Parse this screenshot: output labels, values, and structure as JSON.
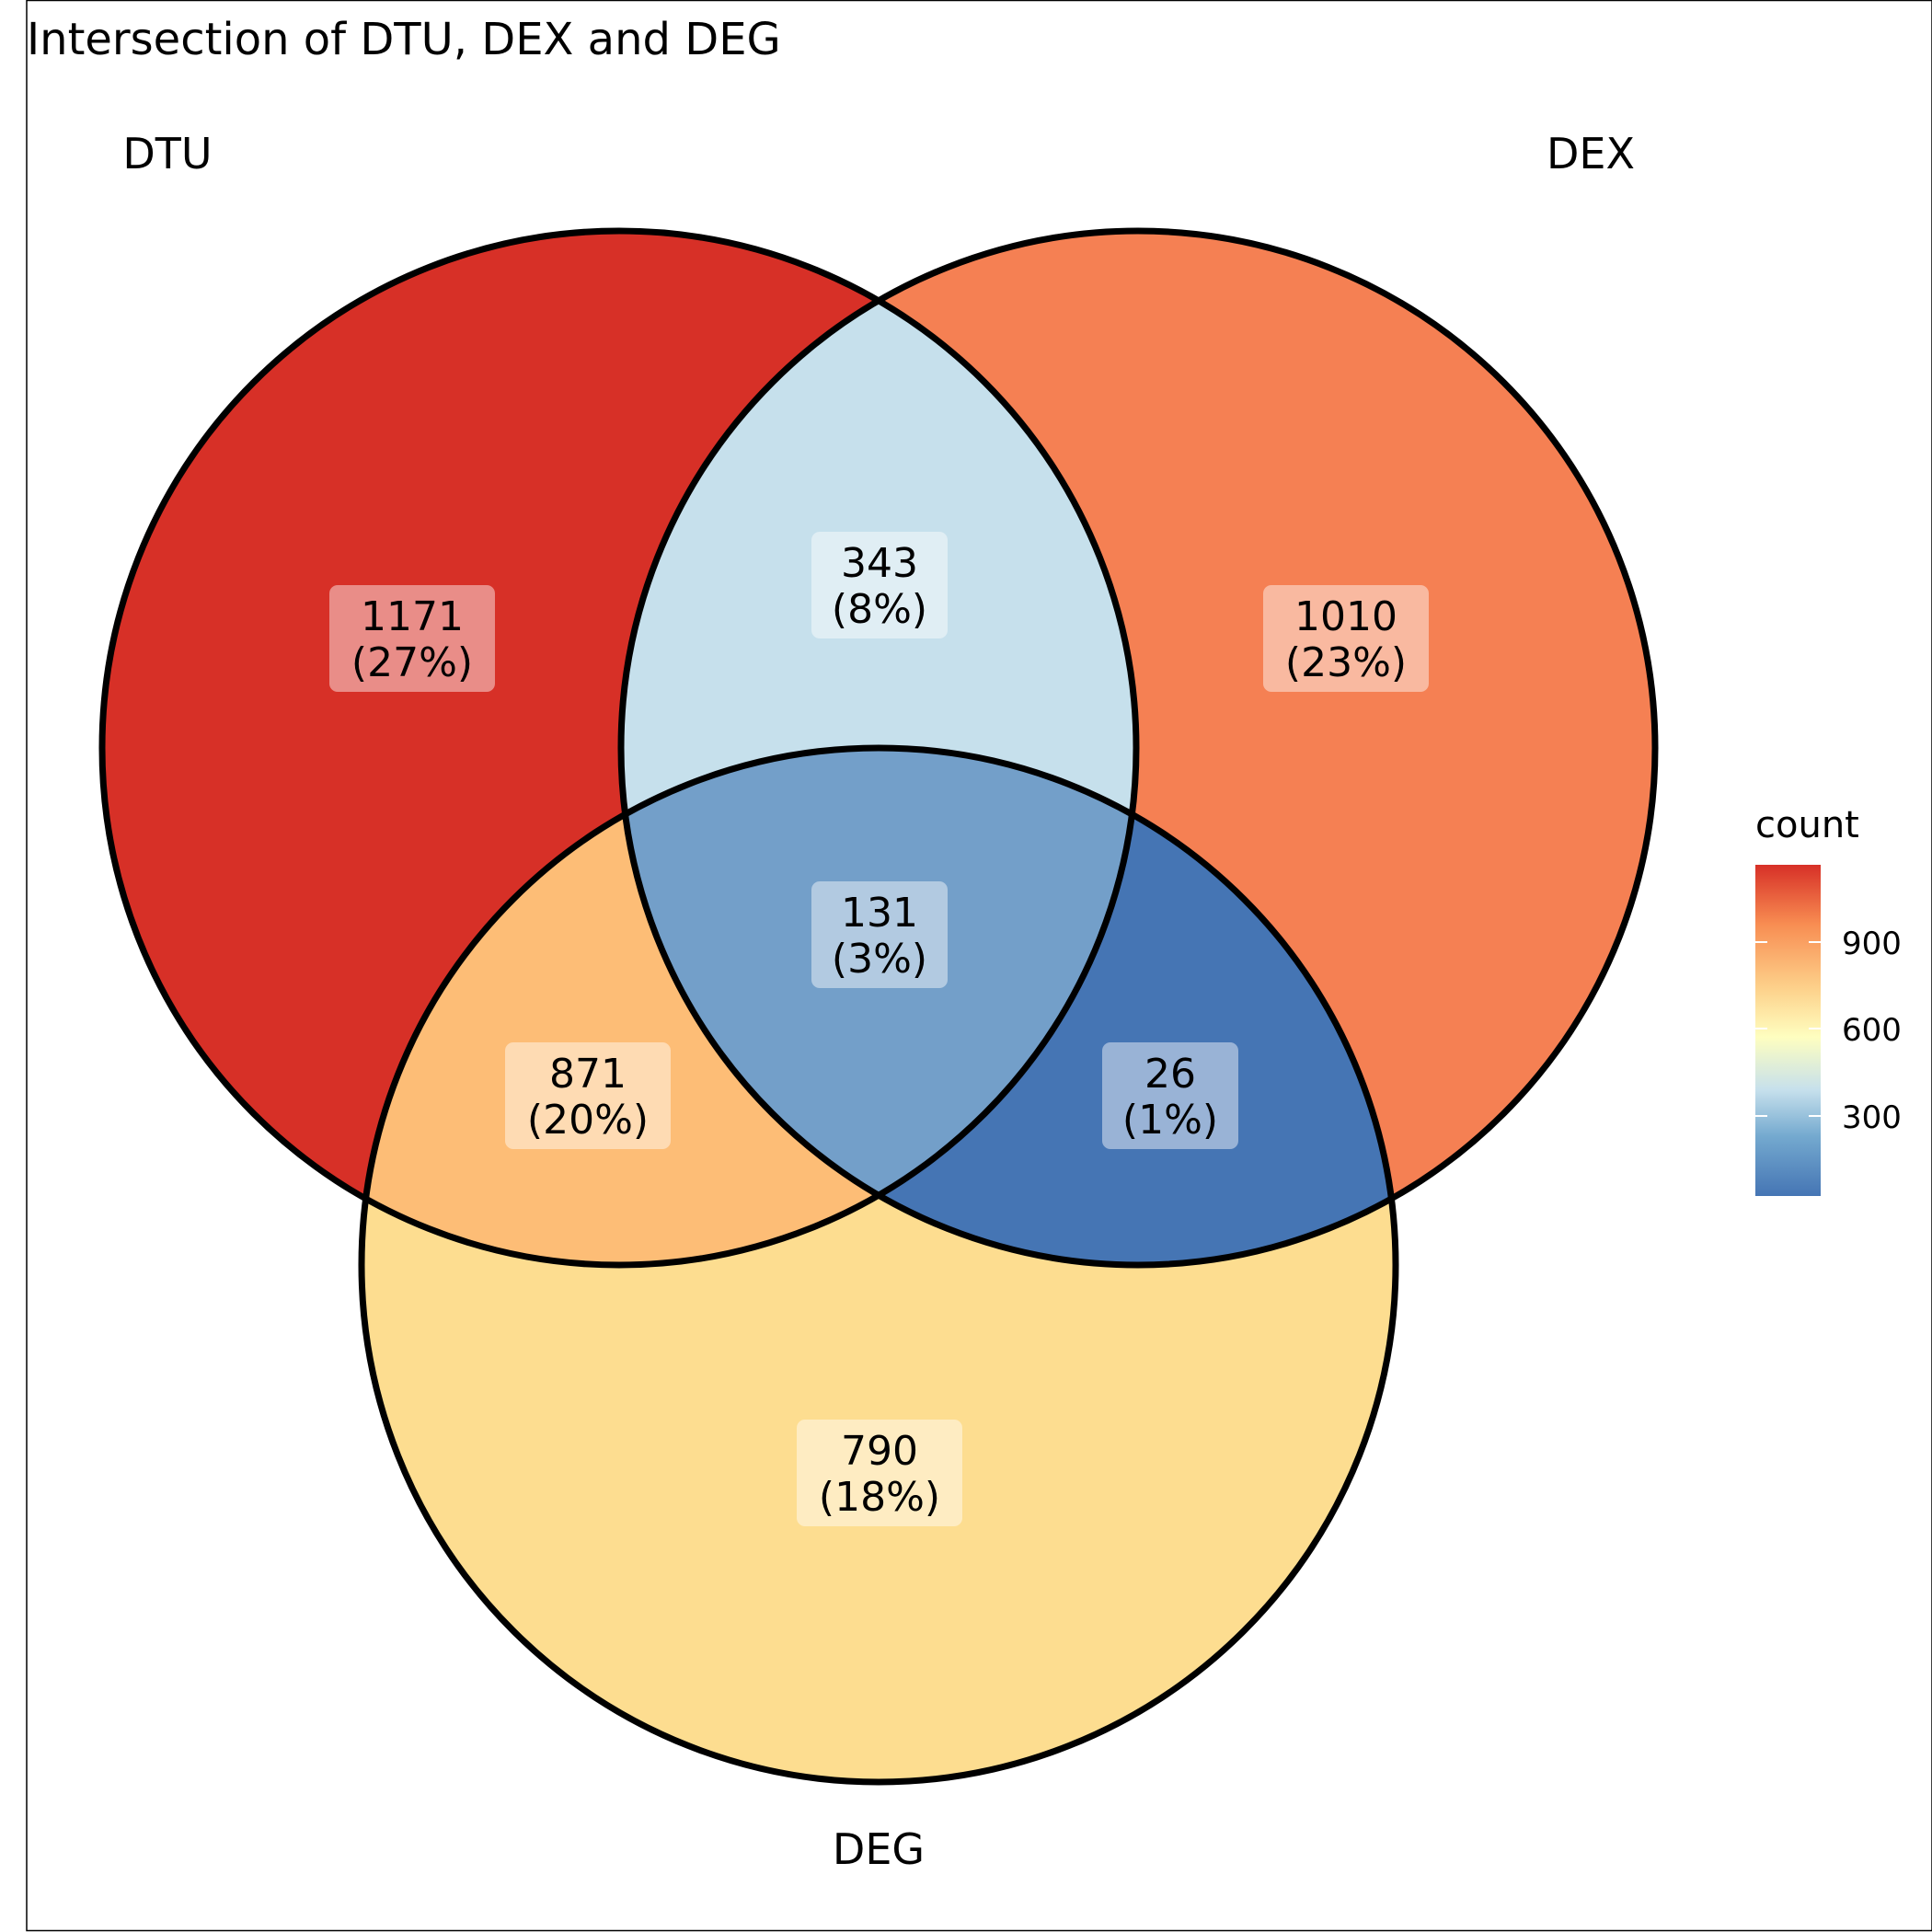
{
  "title": "Intersection of DTU, DEX and DEG",
  "sets": {
    "dtu": "DTU",
    "dex": "DEX",
    "deg": "DEG"
  },
  "regions": {
    "dtu_only": {
      "count": "1171",
      "percent": "(27%)",
      "value": 1171
    },
    "dex_only": {
      "count": "1010",
      "percent": "(23%)",
      "value": 1010
    },
    "deg_only": {
      "count": "790",
      "percent": "(18%)",
      "value": 790
    },
    "dtu_dex": {
      "count": "343",
      "percent": "(8%)",
      "value": 343
    },
    "dtu_deg": {
      "count": "871",
      "percent": "(20%)",
      "value": 871
    },
    "dex_deg": {
      "count": "26",
      "percent": "(1%)",
      "value": 26
    },
    "all_three": {
      "count": "131",
      "percent": "(3%)",
      "value": 131
    }
  },
  "legend": {
    "title": "count",
    "ticks": [
      "900",
      "600",
      "300"
    ],
    "range": [
      26,
      1171
    ],
    "colors": [
      "#4575b4",
      "#74a9cf",
      "#c6e0ec",
      "#fefec0",
      "#fdd08a",
      "#f88d52",
      "#d73027"
    ]
  },
  "colors": {
    "dtu_only": "#d73027",
    "dex_only": "#f58053",
    "deg_only": "#fddd90",
    "dtu_dex": "#c6e0ec",
    "dtu_deg": "#fdbd76",
    "dex_deg": "#4575b4",
    "all_three": "#739fc9"
  }
}
